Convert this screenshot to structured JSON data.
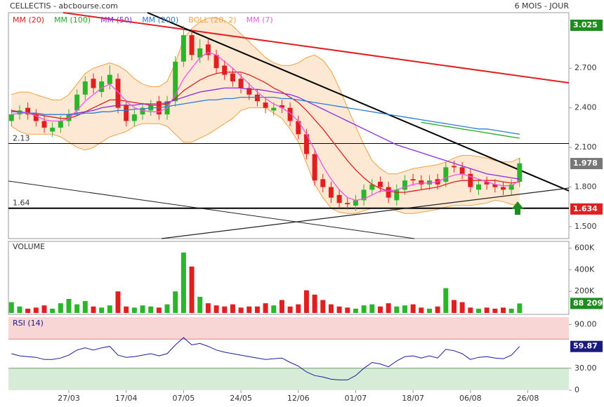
{
  "chart_data": [
    {
      "type": "candlestick",
      "title": "CELLECTIS - abcbourse.com",
      "subtitle": "6 MOIS - JOUR",
      "categories": [
        null,
        null,
        null,
        null,
        null,
        null,
        null,
        "27/03",
        null,
        null,
        null,
        null,
        null,
        null,
        "17/04",
        null,
        null,
        null,
        null,
        null,
        null,
        "07/05",
        null,
        null,
        null,
        null,
        null,
        null,
        "24/05",
        null,
        null,
        null,
        null,
        null,
        null,
        "12/06",
        null,
        null,
        null,
        null,
        null,
        null,
        "01/07",
        null,
        null,
        null,
        null,
        null,
        null,
        "18/07",
        null,
        null,
        null,
        null,
        null,
        null,
        "06/08",
        null,
        null,
        null,
        null,
        null,
        null,
        "26/08"
      ],
      "open": [
        2.3,
        2.35,
        2.4,
        2.35,
        2.3,
        2.22,
        2.25,
        2.3,
        2.38,
        2.5,
        2.62,
        2.52,
        2.58,
        2.62,
        2.42,
        2.3,
        2.35,
        2.38,
        2.45,
        2.35,
        2.45,
        2.75,
        2.95,
        2.78,
        2.88,
        2.8,
        2.72,
        2.66,
        2.62,
        2.55,
        2.5,
        2.44,
        2.38,
        2.42,
        2.4,
        2.3,
        2.2,
        2.05,
        1.86,
        1.8,
        1.74,
        1.68,
        1.66,
        1.7,
        1.78,
        1.84,
        1.8,
        1.7,
        1.78,
        1.86,
        1.85,
        1.82,
        1.86,
        1.84,
        1.96,
        1.95,
        1.9,
        1.78,
        1.84,
        1.82,
        1.8,
        1.78,
        1.84,
        null
      ],
      "high": [
        2.39,
        2.42,
        2.44,
        2.39,
        2.34,
        2.29,
        2.34,
        2.39,
        2.54,
        2.64,
        2.66,
        2.64,
        2.72,
        2.66,
        2.46,
        2.39,
        2.44,
        2.46,
        2.49,
        2.49,
        2.79,
        3.02,
        2.99,
        2.92,
        2.92,
        2.84,
        2.76,
        2.7,
        2.66,
        2.59,
        2.54,
        2.48,
        2.44,
        2.46,
        2.44,
        2.34,
        2.24,
        2.09,
        1.9,
        1.84,
        1.78,
        1.72,
        1.74,
        1.82,
        1.86,
        1.88,
        1.84,
        1.82,
        1.89,
        1.9,
        1.89,
        1.89,
        1.9,
        1.99,
        2.0,
        1.99,
        1.94,
        1.86,
        1.88,
        1.86,
        1.84,
        1.86,
        2.02,
        null
      ],
      "low": [
        2.26,
        2.31,
        2.31,
        2.26,
        2.21,
        2.18,
        2.21,
        2.26,
        2.34,
        2.46,
        2.51,
        2.48,
        2.54,
        2.36,
        2.26,
        2.26,
        2.31,
        2.34,
        2.31,
        2.31,
        2.41,
        2.71,
        2.76,
        2.74,
        2.76,
        2.66,
        2.61,
        2.56,
        2.51,
        2.46,
        2.41,
        2.36,
        2.34,
        2.36,
        2.26,
        2.16,
        2.01,
        1.81,
        1.76,
        1.68,
        1.64,
        1.63,
        1.62,
        1.66,
        1.74,
        1.76,
        1.68,
        1.66,
        1.74,
        1.81,
        1.78,
        1.78,
        1.78,
        1.8,
        1.91,
        1.86,
        1.76,
        1.74,
        1.78,
        1.76,
        1.74,
        1.74,
        1.8,
        null
      ],
      "close": [
        2.35,
        2.38,
        2.35,
        2.3,
        2.25,
        2.25,
        2.3,
        2.35,
        2.5,
        2.6,
        2.55,
        2.6,
        2.65,
        2.4,
        2.3,
        2.35,
        2.4,
        2.42,
        2.35,
        2.45,
        2.75,
        2.95,
        2.8,
        2.85,
        2.8,
        2.7,
        2.65,
        2.6,
        2.55,
        2.5,
        2.45,
        2.4,
        2.4,
        2.4,
        2.3,
        2.2,
        2.05,
        1.85,
        1.8,
        1.72,
        1.68,
        1.67,
        1.7,
        1.78,
        1.82,
        1.8,
        1.72,
        1.78,
        1.85,
        1.85,
        1.82,
        1.85,
        1.82,
        1.95,
        1.95,
        1.9,
        1.8,
        1.82,
        1.82,
        1.8,
        1.78,
        1.82,
        1.98,
        null
      ],
      "up_color": "#2bb52b",
      "down_color": "#e02020",
      "series": [
        {
          "name": "MM (20)",
          "color": "#e02020",
          "values": [
            2.38,
            2.37,
            2.36,
            2.35,
            2.34,
            2.33,
            2.32,
            2.32,
            2.34,
            2.37,
            2.4,
            2.43,
            2.46,
            2.46,
            2.45,
            2.44,
            2.43,
            2.42,
            2.42,
            2.43,
            2.47,
            2.53,
            2.57,
            2.61,
            2.64,
            2.66,
            2.67,
            2.67,
            2.67,
            2.65,
            2.62,
            2.59,
            2.55,
            2.52,
            2.48,
            2.44,
            2.38,
            2.31,
            2.24,
            2.16,
            2.08,
            2.0,
            1.93,
            1.87,
            1.82,
            1.79,
            1.77,
            1.76,
            1.76,
            1.77,
            1.78,
            1.79,
            1.8,
            1.82,
            1.84,
            1.85,
            1.85,
            1.85,
            1.85,
            1.85,
            1.84,
            1.83,
            1.84,
            null
          ]
        },
        {
          "name": "MM (100)",
          "color": "#22aa22",
          "values": [
            null,
            null,
            null,
            null,
            null,
            null,
            null,
            null,
            null,
            null,
            null,
            null,
            null,
            null,
            null,
            null,
            null,
            null,
            null,
            null,
            null,
            null,
            null,
            null,
            null,
            null,
            null,
            null,
            null,
            null,
            null,
            null,
            null,
            null,
            null,
            null,
            null,
            null,
            null,
            null,
            null,
            null,
            null,
            null,
            null,
            null,
            null,
            null,
            null,
            null,
            2.29,
            2.28,
            2.27,
            2.26,
            2.25,
            2.24,
            2.23,
            2.22,
            2.21,
            2.2,
            2.19,
            2.18,
            2.17,
            null
          ]
        },
        {
          "name": "MM (50)",
          "color": "#8a2be2",
          "values": [
            2.37,
            2.37,
            2.36,
            2.36,
            2.35,
            2.35,
            2.35,
            2.35,
            2.36,
            2.37,
            2.38,
            2.4,
            2.41,
            2.42,
            2.42,
            2.42,
            2.43,
            2.43,
            2.43,
            2.44,
            2.46,
            2.48,
            2.5,
            2.52,
            2.53,
            2.54,
            2.55,
            2.55,
            2.55,
            2.54,
            2.54,
            2.53,
            2.52,
            2.51,
            2.5,
            2.48,
            2.45,
            2.42,
            2.39,
            2.36,
            2.33,
            2.3,
            2.27,
            2.24,
            2.21,
            2.18,
            2.15,
            2.12,
            2.1,
            2.08,
            2.06,
            2.04,
            2.02,
            2.0,
            1.98,
            1.96,
            1.94,
            1.92,
            1.9,
            1.89,
            1.88,
            1.87,
            1.86,
            null
          ]
        },
        {
          "name": "MM (200)",
          "color": "#2a7fd4",
          "values": [
            2.37,
            2.37,
            2.36,
            2.36,
            2.35,
            2.35,
            2.35,
            2.35,
            2.35,
            2.36,
            2.36,
            2.37,
            2.37,
            2.38,
            2.38,
            2.39,
            2.39,
            2.4,
            2.4,
            2.41,
            2.42,
            2.43,
            2.44,
            2.45,
            2.46,
            2.46,
            2.47,
            2.47,
            2.48,
            2.48,
            2.48,
            2.48,
            2.48,
            2.47,
            2.47,
            2.46,
            2.45,
            2.44,
            2.43,
            2.42,
            2.41,
            2.4,
            2.39,
            2.38,
            2.37,
            2.36,
            2.35,
            2.34,
            2.33,
            2.32,
            2.31,
            2.3,
            2.29,
            2.28,
            2.27,
            2.26,
            2.25,
            2.24,
            2.24,
            2.23,
            2.22,
            2.21,
            2.2,
            null
          ]
        },
        {
          "name": "BOLL (20, 2)",
          "color": "#f0a040",
          "band": true,
          "upper": [
            2.5,
            2.52,
            2.52,
            2.5,
            2.48,
            2.46,
            2.46,
            2.5,
            2.58,
            2.66,
            2.7,
            2.72,
            2.74,
            2.72,
            2.68,
            2.62,
            2.58,
            2.56,
            2.56,
            2.6,
            2.74,
            2.92,
            3.0,
            3.05,
            3.08,
            3.08,
            3.06,
            3.02,
            2.96,
            2.9,
            2.84,
            2.78,
            2.74,
            2.72,
            2.72,
            2.74,
            2.78,
            2.8,
            2.76,
            2.68,
            2.55,
            2.4,
            2.26,
            2.12,
            2.0,
            1.94,
            1.9,
            1.9,
            1.92,
            1.94,
            1.95,
            1.96,
            1.97,
            1.99,
            2.02,
            2.04,
            2.04,
            2.03,
            2.02,
            2.0,
            1.99,
            1.99,
            2.02,
            null
          ],
          "lower": [
            2.26,
            2.22,
            2.2,
            2.2,
            2.2,
            2.2,
            2.18,
            2.14,
            2.1,
            2.08,
            2.1,
            2.14,
            2.18,
            2.2,
            2.22,
            2.26,
            2.28,
            2.28,
            2.28,
            2.26,
            2.2,
            2.14,
            2.14,
            2.17,
            2.2,
            2.24,
            2.28,
            2.32,
            2.38,
            2.4,
            2.4,
            2.4,
            2.36,
            2.32,
            2.24,
            2.14,
            1.98,
            1.82,
            1.72,
            1.64,
            1.61,
            1.6,
            1.6,
            1.62,
            1.64,
            1.64,
            1.64,
            1.62,
            1.6,
            1.6,
            1.61,
            1.62,
            1.63,
            1.65,
            1.66,
            1.66,
            1.66,
            1.67,
            1.68,
            1.7,
            1.69,
            1.67,
            1.66,
            null
          ]
        },
        {
          "name": "MM (7)",
          "color": "#ee55ee",
          "values": [
            2.35,
            2.36,
            2.36,
            2.34,
            2.31,
            2.3,
            2.3,
            2.32,
            2.38,
            2.45,
            2.5,
            2.55,
            2.58,
            2.52,
            2.45,
            2.4,
            2.38,
            2.37,
            2.37,
            2.4,
            2.5,
            2.62,
            2.7,
            2.78,
            2.82,
            2.8,
            2.75,
            2.7,
            2.64,
            2.58,
            2.52,
            2.47,
            2.43,
            2.4,
            2.36,
            2.3,
            2.2,
            2.08,
            1.96,
            1.86,
            1.78,
            1.72,
            1.7,
            1.71,
            1.74,
            1.77,
            1.77,
            1.78,
            1.8,
            1.82,
            1.83,
            1.83,
            1.84,
            1.87,
            1.89,
            1.9,
            1.88,
            1.86,
            1.84,
            1.82,
            1.81,
            1.81,
            1.85,
            null
          ]
        }
      ],
      "ylim": [
        1.41,
        3.11
      ],
      "yticks": [
        {
          "value": 1.5,
          "label": "1.500"
        },
        {
          "value": 1.8,
          "label": "1.800"
        },
        {
          "value": 2.1,
          "label": "2.100"
        },
        {
          "value": 2.4,
          "label": "2.400"
        },
        {
          "value": 2.7,
          "label": "2.700"
        }
      ],
      "hlines": [
        {
          "value": 2.13,
          "label": "2.13"
        },
        {
          "value": 1.64,
          "label": "1.64"
        }
      ],
      "badges": [
        {
          "value": 3.025,
          "color": "#1e8c1e"
        },
        {
          "value": 1.978,
          "color": "#777777"
        },
        {
          "value": 1.634,
          "color": "#e02020"
        }
      ]
    },
    {
      "type": "bar",
      "title": "VOLUME",
      "color": "#2bb52b",
      "down_color": "#e02020",
      "values": [
        100000,
        60000,
        40000,
        50000,
        70000,
        40000,
        90000,
        130000,
        80000,
        110000,
        60000,
        50000,
        70000,
        200000,
        60000,
        50000,
        70000,
        60000,
        50000,
        80000,
        200000,
        560000,
        430000,
        150000,
        90000,
        70000,
        60000,
        80000,
        50000,
        60000,
        60000,
        90000,
        70000,
        120000,
        60000,
        80000,
        210000,
        170000,
        120000,
        80000,
        60000,
        50000,
        40000,
        70000,
        80000,
        60000,
        90000,
        60000,
        70000,
        80000,
        50000,
        40000,
        60000,
        230000,
        120000,
        100000,
        50000,
        40000,
        50000,
        40000,
        50000,
        40000,
        88209,
        null
      ],
      "ylim": [
        0,
        650000
      ],
      "yticks": [
        {
          "value": 200000,
          "label": "200K"
        },
        {
          "value": 400000,
          "label": "400K"
        },
        {
          "value": 600000,
          "label": "600K"
        }
      ],
      "badge": {
        "value": 88209,
        "label": "88 209",
        "color": "#1e8c1e"
      }
    },
    {
      "type": "line",
      "title": "RSI (14)",
      "color": "#1a1aa0",
      "values": [
        50,
        47,
        46,
        45,
        42,
        42,
        44,
        48,
        55,
        58,
        55,
        58,
        60,
        48,
        45,
        46,
        48,
        50,
        47,
        50,
        62,
        72,
        62,
        64,
        60,
        55,
        52,
        50,
        48,
        46,
        44,
        42,
        43,
        44,
        38,
        33,
        25,
        20,
        18,
        15,
        14,
        14,
        20,
        30,
        38,
        36,
        32,
        40,
        46,
        47,
        44,
        47,
        44,
        56,
        54,
        50,
        42,
        45,
        46,
        44,
        43,
        48,
        59.87,
        null
      ],
      "ylim": [
        0,
        100
      ],
      "yticks": [
        0,
        {
          "value": 30,
          "label": "30.00"
        },
        {
          "value": 90,
          "label": "90.00"
        }
      ],
      "zones": [
        {
          "from": 70,
          "to": 100,
          "color": "#f9d6d6"
        },
        {
          "from": 0,
          "to": 30,
          "color": "#d6ecd6"
        }
      ],
      "badge": {
        "value": 59.87,
        "color": "#1a1a80"
      }
    }
  ]
}
